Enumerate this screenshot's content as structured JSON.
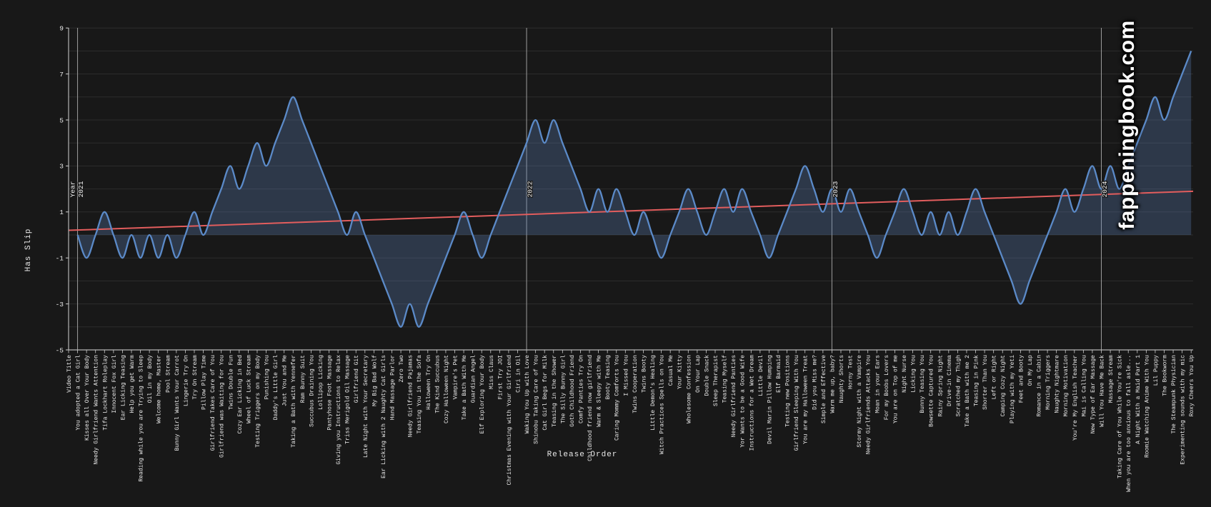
{
  "watermark": {
    "text": "fappeningbook.com"
  },
  "chart_data": {
    "type": "area",
    "title": "",
    "xlabel": "Release Order",
    "ylabel": "Has Slip",
    "ylim": [
      -5,
      9
    ],
    "yticks": [
      9,
      7,
      5,
      3,
      1,
      -1,
      -3,
      -5
    ],
    "grid": "on",
    "line_color": "#5b8ac8",
    "fill_color": "rgba(95,133,190,0.30)",
    "trend": {
      "start": 0.2,
      "end": 1.9,
      "color": "#e25d5d"
    },
    "year_markers": [
      {
        "lines": [
          "Year",
          "2021"
        ],
        "index": 1
      },
      {
        "lines": [
          "2022"
        ],
        "index": 51
      },
      {
        "lines": [
          "2023"
        ],
        "index": 85
      },
      {
        "lines": [
          "2024"
        ],
        "index": 115
      }
    ],
    "categories": [
      "Video Title",
      "You adopted a Cat Girl",
      "Kisses all Over Your Body",
      "Needy Girlfriend Wants Attention",
      "Tifa Lockhart Roleplay",
      "Innocent Fox Girl",
      "Ear Licking Teasing",
      "Help you get Warm",
      "Reading while you are Trying to Sleep",
      "Oil in my Body",
      "Welcome home, Master",
      "Pool Stream",
      "Bunny Girl Wants Your Carrot",
      "Lingerie Try On",
      "Try On Stream",
      "Pillow Play Time",
      "Girlfriend Takes Care of You",
      "Girlfriend was Waiting for You",
      "Twins Double Fun",
      "Cozy Ear Licking in Bed",
      "Wheel of Luck Stream",
      "Testing Triggers on my Body",
      "Punishing You",
      "Daddy's Little Girl",
      "Just You and Me",
      "Taking a Bath with Yennefer",
      "Ram Bunny Suit",
      "Succubus Draining You",
      "Lollipop Licking",
      "Pantyhose Foot Massage",
      "Giving you Instructions to Relax",
      "Triss Merigold Oil Massage",
      "Girlfriend Git",
      "Late Night with Your Secretary",
      "My Big Bad Wolf",
      "Ear Licking with 2 Naughty Cat Girls",
      "Hand Massage Parlor",
      "Zero Two",
      "Needy Girlfriend Pajamas",
      "Teasing You in the Sofa",
      "Halloween Try On",
      "The Kind Succubus",
      "Cozy Halloween Night",
      "Vampire's Pet",
      "Take a Bath With Me",
      "Guardian Angel",
      "Elf Exploring Your Body",
      "Miss Claus",
      "First Try JOI",
      "Christmas Evening with Your Girlfriend",
      "Ciri in Oil",
      "Waking You Up with Love",
      "Shinobu Taking Care of You",
      "Cat Girl Begs for Milk",
      "Teasing in the Shower",
      "The Silly Bunny Girl",
      "Goth Childhood Friend",
      "Comfy Panties Try On",
      "Childhood friend now girlfriend",
      "Warm & Sleepy with Me",
      "Booty Teasing",
      "Caring Mommy Comforts You",
      "I Missed You",
      "Twins Cooperation",
      "Twins Booty",
      "Little Demon's Healing",
      "Witch Practices Spells on You",
      "Casual Me",
      "Your Kitty",
      "Wholesome Confession",
      "On Your Lap",
      "Double Snack",
      "Sleep Therapist",
      "Teasing Myself",
      "Needy Girlfriend Panties",
      "Yor Wants to be a Good Wife",
      "Instructions for a Wet Dream",
      "Little Devil",
      "Devil Marin Pillow Humping",
      "Elf Barmaid",
      "Testing new Positions",
      "Girlfriend Sleeping With You",
      "You are my Halloween Treat",
      "Did you Miss me?",
      "Simple and Effective",
      "Warm me up, baby?",
      "Naughty Shorts",
      "Horny Test",
      "Stormy Night with a Vampire",
      "Needy Girlfriends Attacks You",
      "Moan in your Ears",
      "For my Boobs Lovers",
      "You are on Top of me",
      "Night Nurse",
      "Licking You",
      "Bunny Teasing You",
      "Bowsette Captured You",
      "Rainy Spring Night",
      "Drive-in Cinema",
      "Scratched my Thigh",
      "Take a Bath with me 2",
      "Teasing in Pink",
      "Shorter Than You",
      "Left or Right",
      "Camping Cozy Night",
      "Playing with my Yeti",
      "Feet and Booty",
      "On My Lap",
      "Romance in a Cabin",
      "Morning Triggers",
      "Naughty Nightmare",
      "Morning Motivation",
      "You're My English Teacher",
      "Mai is Calling You",
      "New Type of Ear Massage",
      "Will You Have Me Back",
      "Massage Stream",
      "Taking Care of You While You're Sick",
      "When you are too anxious to fall asle...",
      "A Night With a Maid Part 1",
      "Roomie Watching Anime With You",
      "Lil Puppy",
      "The Bookworm",
      "The Steampunk Physician",
      "Experimenting sounds with my mic",
      "Roxy Cheers You Up"
    ],
    "values": [
      null,
      0,
      -1,
      0,
      1,
      0,
      -1,
      0,
      -1,
      0,
      -1,
      0,
      -1,
      0,
      1,
      0,
      1,
      2,
      3,
      2,
      3,
      4,
      3,
      4,
      5,
      6,
      5,
      4,
      3,
      2,
      1,
      0,
      1,
      0,
      -1,
      -2,
      -3,
      -4,
      -3,
      -4,
      -3,
      -2,
      -1,
      0,
      1,
      0,
      -1,
      0,
      1,
      2,
      3,
      4,
      5,
      4,
      5,
      4,
      3,
      2,
      1,
      2,
      1,
      2,
      1,
      0,
      1,
      0,
      -1,
      0,
      1,
      2,
      1,
      0,
      1,
      2,
      1,
      2,
      1,
      0,
      -1,
      0,
      1,
      2,
      3,
      2,
      1,
      2,
      1,
      2,
      1,
      0,
      -1,
      0,
      1,
      2,
      1,
      0,
      1,
      0,
      1,
      0,
      1,
      2,
      1,
      0,
      -1,
      -2,
      -3,
      -2,
      -1,
      0,
      1,
      2,
      1,
      2,
      3,
      2,
      3,
      2,
      3,
      4,
      5,
      6,
      5,
      6,
      7,
      8
    ]
  }
}
